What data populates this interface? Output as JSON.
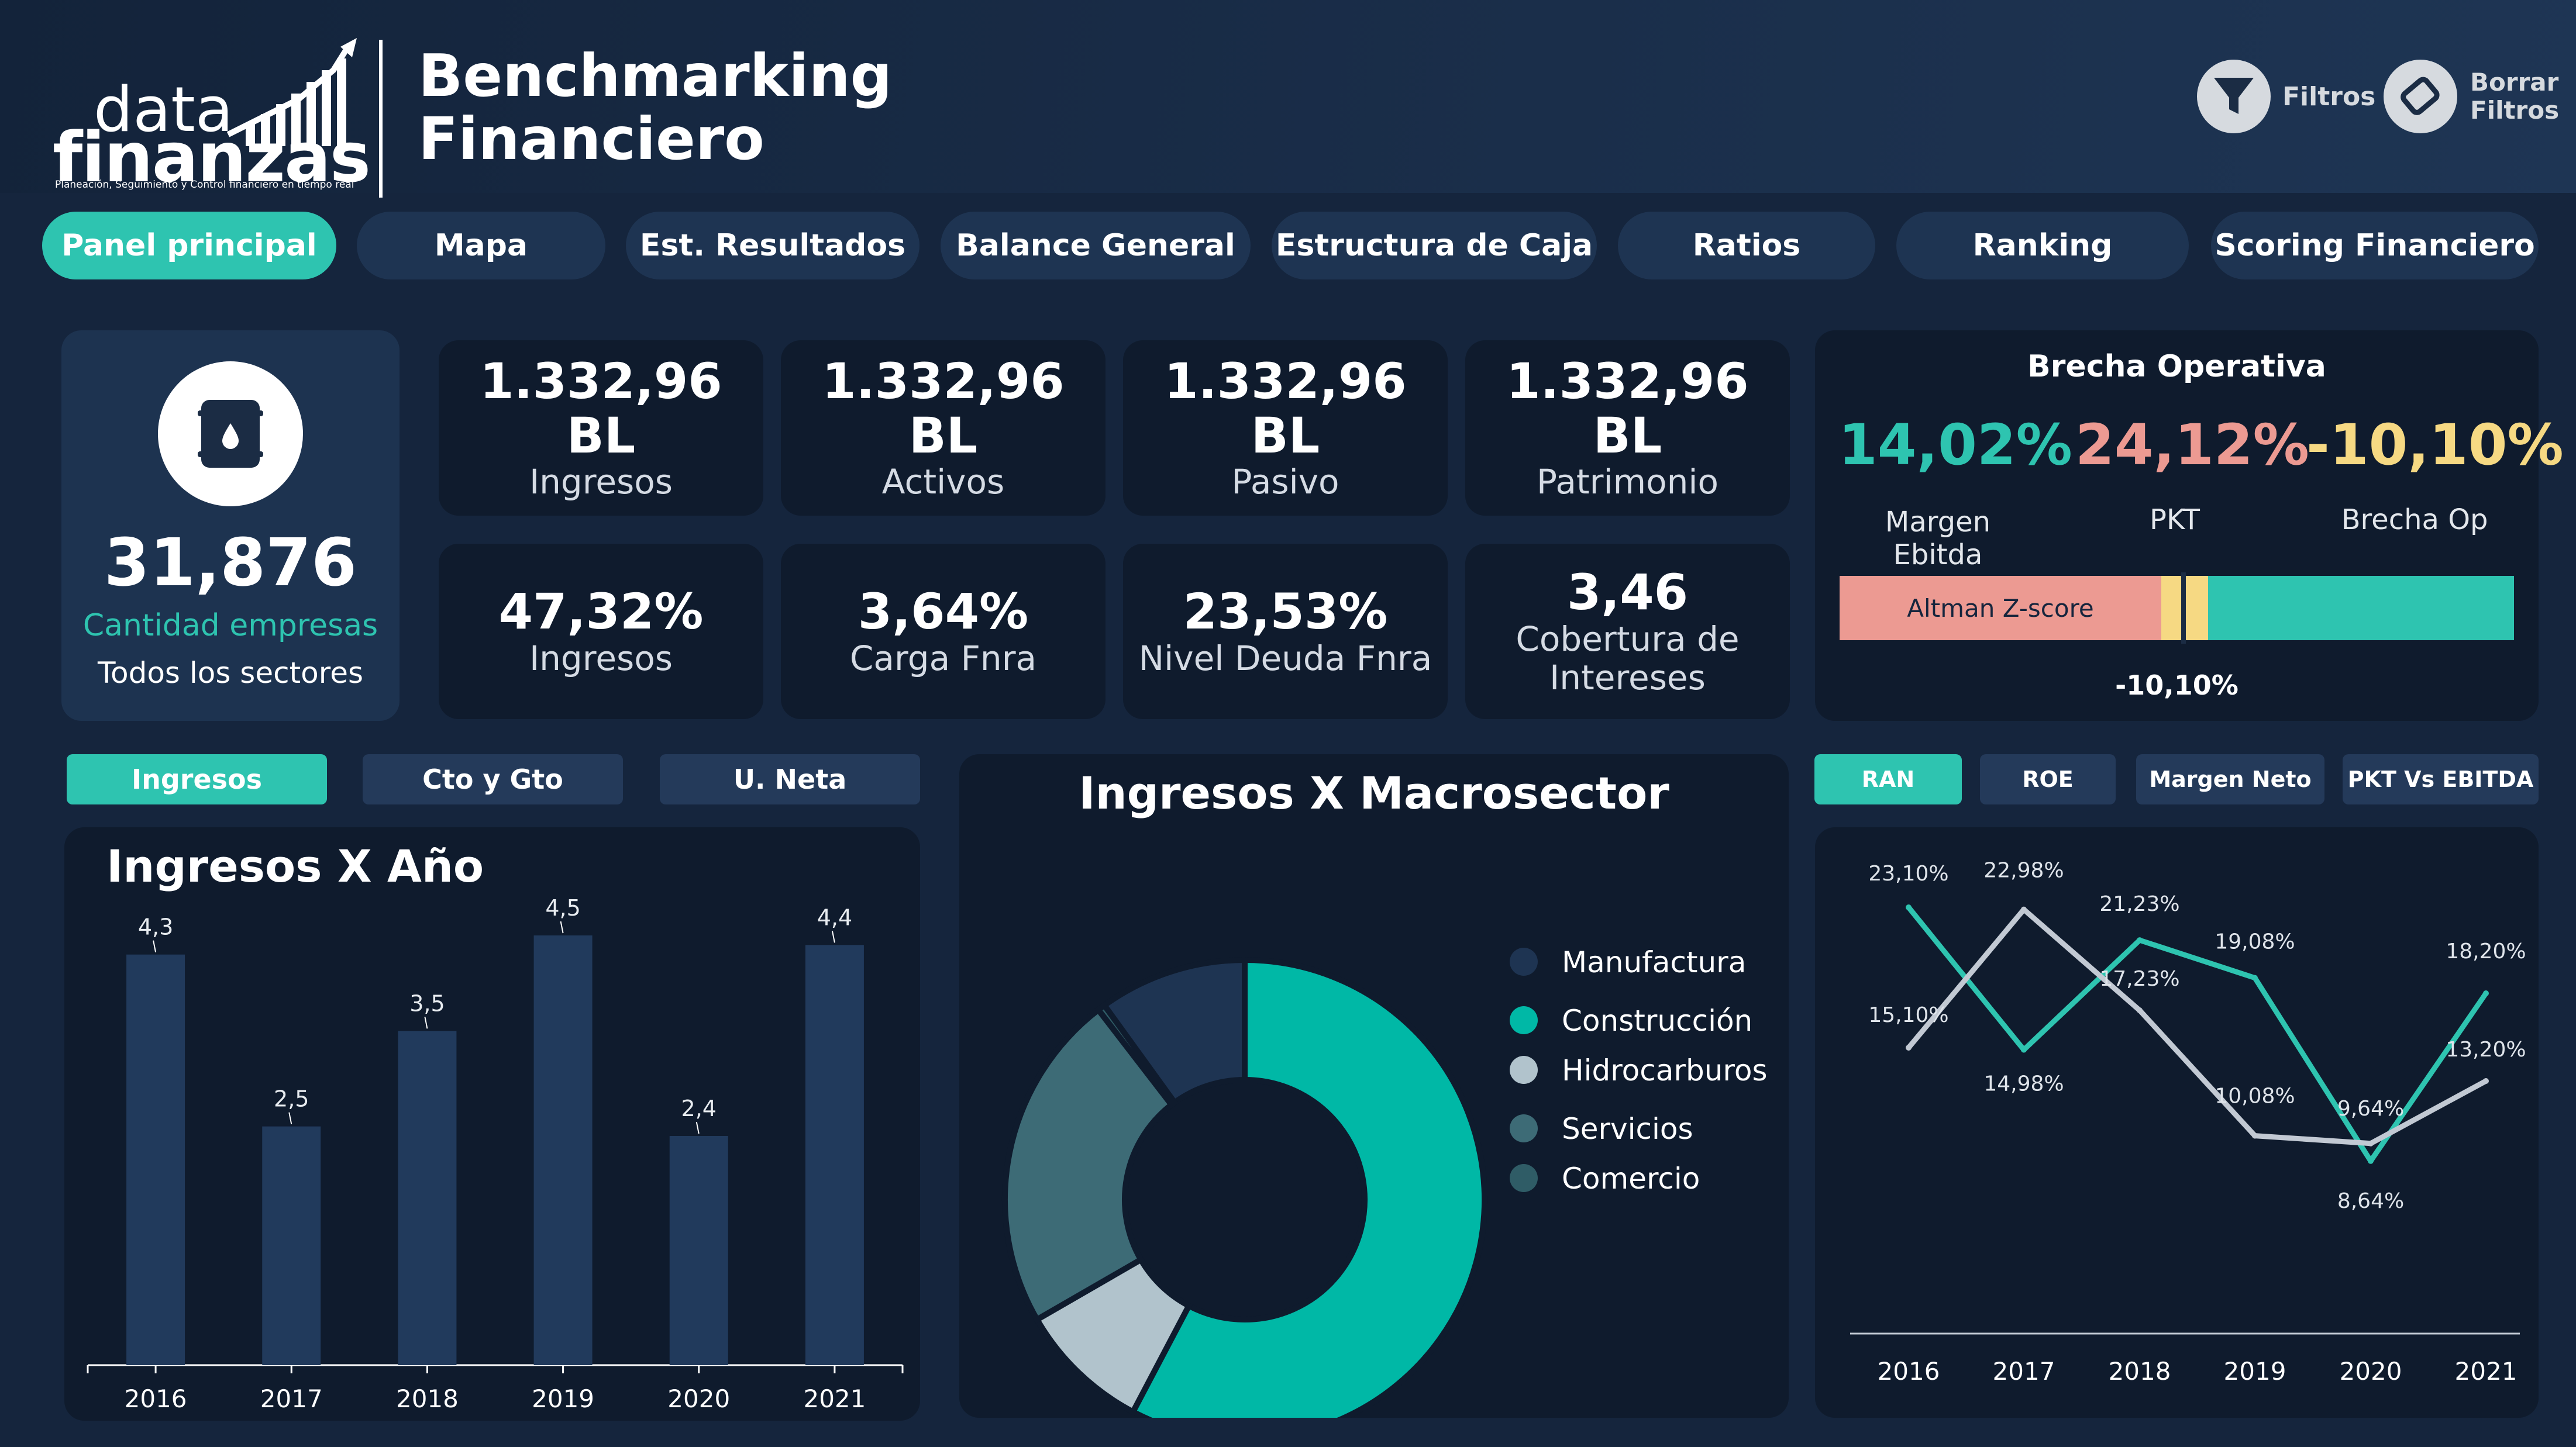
{
  "header": {
    "logo_line1": "data",
    "logo_line2": "finanzas",
    "logo_tagline": "Planeación, Seguimiento y Control financiero en tiempo real",
    "title_line1": "Benchmarking",
    "title_line2": "Financiero",
    "filters_label": "Filtros",
    "clear_filters_line1": "Borrar",
    "clear_filters_line2": "Filtros"
  },
  "tabs": [
    {
      "label": "Panel principal",
      "active": true
    },
    {
      "label": "Mapa"
    },
    {
      "label": "Est. Resultados"
    },
    {
      "label": "Balance General"
    },
    {
      "label": "Estructura de Caja"
    },
    {
      "label": "Ratios"
    },
    {
      "label": "Ranking"
    },
    {
      "label": "Scoring Financiero"
    }
  ],
  "companies": {
    "count": "31,876",
    "label": "Cantidad empresas",
    "sector": "Todos los sectores"
  },
  "kpis_row1": [
    {
      "value": "1.332,96 BL",
      "label": "Ingresos"
    },
    {
      "value": "1.332,96 BL",
      "label": "Activos"
    },
    {
      "value": "1.332,96 BL",
      "label": "Pasivo"
    },
    {
      "value": "1.332,96 BL",
      "label": "Patrimonio"
    }
  ],
  "kpis_row2": [
    {
      "value": "47,32%",
      "label": "Ingresos"
    },
    {
      "value": "3,64%",
      "label": "Carga Fnra"
    },
    {
      "value": "23,53%",
      "label": "Nivel Deuda Fnra"
    },
    {
      "value": "3,46",
      "label": "Cobertura de Intereses"
    }
  ],
  "brecha": {
    "title": "Brecha Operativa",
    "items": [
      {
        "value": "14,02%",
        "label": "Margen Ebitda",
        "color": "#2ec4b0"
      },
      {
        "value": "24,12%",
        "label": "PKT",
        "color": "#ec9a92"
      },
      {
        "value": "-10,10%",
        "label": "Brecha Op",
        "color": "#f6d983"
      }
    ],
    "bar_label": "Altman Z-score",
    "bar_value": "-10,10%",
    "colors": {
      "left": "#ec9a92",
      "mid": "#f6d983",
      "right": "#2ec4b0"
    }
  },
  "bar_section": {
    "pills": [
      {
        "label": "Ingresos",
        "active": true
      },
      {
        "label": "Cto y Gto"
      },
      {
        "label": "U. Neta"
      }
    ],
    "title": "Ingresos X Año"
  },
  "donut_section": {
    "title": "Ingresos X Macrosector"
  },
  "line_section": {
    "pills": [
      {
        "label": "RAN",
        "active": true
      },
      {
        "label": "ROE"
      },
      {
        "label": "Margen Neto"
      },
      {
        "label": "PKT Vs EBITDA"
      }
    ]
  },
  "chart_data": [
    {
      "type": "bar",
      "title": "Ingresos X Año",
      "categories": [
        "2016",
        "2017",
        "2018",
        "2019",
        "2020",
        "2021"
      ],
      "values": [
        4.3,
        2.5,
        3.5,
        4.5,
        2.4,
        4.4
      ],
      "value_labels": [
        "4,3",
        "2,5",
        "3,5",
        "4,5",
        "2,4",
        "4,4"
      ],
      "ylim": [
        0,
        4.5
      ],
      "color": "#213a5c"
    },
    {
      "type": "pie",
      "title": "Ingresos X Macrosector",
      "donut": true,
      "labels": [
        "Manufactura",
        "Construcción",
        "Hidrocarburos",
        "Servicios",
        "Comercio"
      ],
      "values": [
        10,
        58,
        9,
        23,
        0.5
      ],
      "colors": [
        "#1e3452",
        "#00b8a6",
        "#b1c3cc",
        "#3d6b76",
        "#2f5c66"
      ],
      "legend": "right"
    },
    {
      "type": "line",
      "categories": [
        "2016",
        "2017",
        "2018",
        "2019",
        "2020",
        "2021"
      ],
      "series": [
        {
          "values": [
            23.1,
            14.98,
            21.23,
            19.08,
            8.64,
            18.2
          ],
          "labels": [
            "23,10%",
            "14,98%",
            "21,23%",
            "19,08%",
            "8,64%",
            "18,20%"
          ],
          "color": "#2ec4b0"
        },
        {
          "values": [
            15.1,
            22.98,
            17.23,
            10.08,
            9.64,
            13.2
          ],
          "labels": [
            "15,10%",
            "22,98%",
            "17,23%",
            "10,08%",
            "9,64%",
            "13,20%"
          ],
          "color": "#c2c9d3"
        }
      ],
      "ylim": [
        0,
        25
      ]
    }
  ]
}
